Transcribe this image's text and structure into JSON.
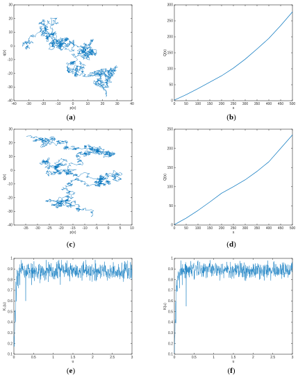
{
  "figure": {
    "colors": {
      "line": "#0072bd",
      "axis": "#262626"
    }
  },
  "chart_data": [
    {
      "id": "a",
      "type": "line",
      "caption": "a",
      "xlabel": "p(x)",
      "ylabel": "q(x)",
      "xlim": [
        -40,
        40
      ],
      "ylim": [
        -40,
        30
      ],
      "xticks": [
        -40,
        -30,
        -20,
        -10,
        0,
        10,
        20,
        30,
        40
      ],
      "yticks": [
        -40,
        -30,
        -20,
        -10,
        0,
        10,
        20,
        30
      ],
      "walk": {
        "seed": 11,
        "steps": 2200,
        "step": 0.75,
        "clouds": [
          {
            "x": -28,
            "y": 7,
            "rx": 5,
            "ry": 8,
            "w": 2
          },
          {
            "x": -18,
            "y": 10,
            "rx": 6,
            "ry": 7,
            "w": 2
          },
          {
            "x": -10,
            "y": 15,
            "rx": 5,
            "ry": 5,
            "w": 1.5
          },
          {
            "x": -6,
            "y": 3,
            "rx": 6,
            "ry": 6,
            "w": 2
          },
          {
            "x": 1,
            "y": 6,
            "rx": 5,
            "ry": 5,
            "w": 1.5
          },
          {
            "x": 5,
            "y": -12,
            "rx": 5,
            "ry": 4,
            "w": 1
          },
          {
            "x": 15,
            "y": -25,
            "rx": 5,
            "ry": 3,
            "w": 1
          },
          {
            "x": 28,
            "y": -17,
            "rx": 5,
            "ry": 3,
            "w": 1
          }
        ],
        "path": [
          [
            -30,
            0
          ],
          [
            -20,
            5
          ],
          [
            -12,
            15
          ],
          [
            -5,
            5
          ],
          [
            3,
            3
          ],
          [
            5,
            -15
          ],
          [
            12,
            -23
          ],
          [
            20,
            -27
          ],
          [
            32,
            -13
          ]
        ]
      }
    },
    {
      "id": "b",
      "type": "line",
      "caption": "b",
      "xlabel": "s",
      "ylabel": "Q(s)",
      "xlim": [
        0,
        500
      ],
      "ylim": [
        0,
        300
      ],
      "xticks": [
        0,
        50,
        100,
        150,
        200,
        250,
        300,
        350,
        400,
        450,
        500
      ],
      "yticks": [
        0,
        50,
        100,
        150,
        200,
        250,
        300
      ],
      "x": [
        0,
        50,
        100,
        150,
        200,
        250,
        300,
        350,
        400,
        450,
        500
      ],
      "y": [
        2,
        19,
        38,
        58,
        78,
        102,
        130,
        162,
        195,
        235,
        278
      ]
    },
    {
      "id": "c",
      "type": "line",
      "caption": "c",
      "xlabel": "p(x)",
      "ylabel": "q(x)",
      "xlim": [
        -40,
        10
      ],
      "ylim": [
        -40,
        30
      ],
      "xticks": [
        -35,
        -30,
        -25,
        -20,
        -15,
        -10,
        -5,
        0,
        5,
        10
      ],
      "yticks": [
        -40,
        -30,
        -20,
        -10,
        0,
        10,
        20,
        30
      ],
      "walk": {
        "seed": 29,
        "steps": 2600,
        "step": 0.5,
        "clouds": [
          {
            "x": -25,
            "y": 24,
            "rx": 12,
            "ry": 4,
            "w": 2
          },
          {
            "x": -10,
            "y": 17,
            "rx": 10,
            "ry": 5,
            "w": 2
          },
          {
            "x": 2,
            "y": 8,
            "rx": 5,
            "ry": 5,
            "w": 1.5
          },
          {
            "x": -22,
            "y": 0,
            "rx": 10,
            "ry": 3,
            "w": 1.5
          },
          {
            "x": -2,
            "y": -5,
            "rx": 8,
            "ry": 4,
            "w": 1.5
          },
          {
            "x": -18,
            "y": -22,
            "rx": 5,
            "ry": 6,
            "w": 2
          },
          {
            "x": -8,
            "y": -28,
            "rx": 7,
            "ry": 3,
            "w": 1.5
          },
          {
            "x": 3,
            "y": -26,
            "rx": 4,
            "ry": 3,
            "w": 1
          }
        ],
        "path": [
          [
            -35,
            25
          ],
          [
            -20,
            22
          ],
          [
            -5,
            15
          ],
          [
            5,
            8
          ],
          [
            -10,
            2
          ],
          [
            -30,
            2
          ],
          [
            -12,
            -3
          ],
          [
            5,
            -5
          ],
          [
            -5,
            -12
          ],
          [
            -22,
            -17
          ],
          [
            -15,
            -28
          ],
          [
            0,
            -29
          ]
        ]
      }
    },
    {
      "id": "d",
      "type": "line",
      "caption": "d",
      "xlabel": "s",
      "ylabel": "Q(s)",
      "xlim": [
        0,
        500
      ],
      "ylim": [
        0,
        250
      ],
      "xticks": [
        0,
        50,
        100,
        150,
        200,
        250,
        300,
        350,
        400,
        450,
        500
      ],
      "yticks": [
        0,
        50,
        100,
        150,
        200,
        250
      ],
      "x": [
        0,
        50,
        100,
        150,
        200,
        250,
        300,
        350,
        400,
        450,
        500
      ],
      "y": [
        1,
        18,
        38,
        60,
        83,
        100,
        118,
        140,
        165,
        200,
        235
      ]
    },
    {
      "id": "e",
      "type": "line",
      "caption": "e",
      "xlabel": "u",
      "ylabel": "K₀(u)",
      "xlim": [
        0,
        3
      ],
      "ylim": [
        0.1,
        1
      ],
      "xticks": [
        0,
        0.5,
        1,
        1.5,
        2,
        2.5,
        3
      ],
      "yticks": [
        0.1,
        0.2,
        0.3,
        0.4,
        0.5,
        0.6,
        0.7,
        0.8,
        0.9,
        1
      ],
      "noise": {
        "seed": 7,
        "n": 600,
        "base": 0.88,
        "amp": 0.055,
        "rise": [
          [
            0,
            0.13
          ],
          [
            0.01,
            0.22
          ],
          [
            0.02,
            0.35
          ],
          [
            0.03,
            0.55
          ],
          [
            0.04,
            0.48
          ],
          [
            0.05,
            0.72
          ],
          [
            0.06,
            0.62
          ],
          [
            0.08,
            0.85
          ],
          [
            0.1,
            0.78
          ]
        ],
        "dips": [
          [
            0.12,
            0.72
          ],
          [
            0.15,
            0.75
          ],
          [
            0.3,
            0.6
          ],
          [
            0.45,
            0.75
          ]
        ]
      }
    },
    {
      "id": "f",
      "type": "line",
      "caption": "f",
      "xlabel": "u",
      "ylabel": "K(u)",
      "xlim": [
        0,
        3
      ],
      "ylim": [
        0.1,
        1
      ],
      "xticks": [
        0,
        0.5,
        1,
        1.5,
        2,
        2.5,
        3
      ],
      "yticks": [
        0.1,
        0.2,
        0.3,
        0.4,
        0.5,
        0.6,
        0.7,
        0.8,
        0.9,
        1
      ],
      "noise": {
        "seed": 19,
        "n": 600,
        "base": 0.89,
        "amp": 0.05,
        "rise": [
          [
            0,
            0.12
          ],
          [
            0.01,
            0.25
          ],
          [
            0.02,
            0.4
          ],
          [
            0.03,
            0.6
          ],
          [
            0.04,
            0.5
          ],
          [
            0.05,
            0.75
          ],
          [
            0.07,
            0.65
          ],
          [
            0.09,
            0.88
          ],
          [
            0.11,
            0.8
          ]
        ],
        "dips": [
          [
            0.13,
            0.72
          ],
          [
            0.2,
            0.75
          ],
          [
            0.3,
            0.55
          ],
          [
            0.5,
            0.8
          ]
        ]
      }
    }
  ]
}
